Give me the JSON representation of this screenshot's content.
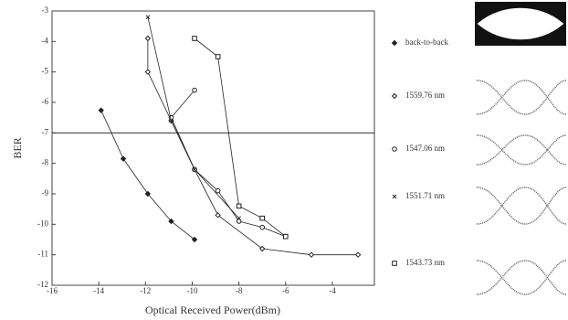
{
  "chart_data": {
    "type": "line",
    "x_label": "Optical Received Power(dBm)",
    "y_label": "BER",
    "xlim": [
      -16,
      -2.2
    ],
    "xticks": [
      -16,
      -14,
      -12,
      -10,
      -8,
      -6,
      -4
    ],
    "ylim": [
      -12,
      -3
    ],
    "yticks": [
      -3,
      -4,
      -5,
      -6,
      -7,
      -8,
      -9,
      -10,
      -11,
      -12
    ],
    "reference_line": -7,
    "series": [
      {
        "name": "back-to-back",
        "color": "#222222",
        "marker": "diamond-filled",
        "x": [
          -13.9,
          -12.95,
          -11.9,
          -10.9,
          -9.9
        ],
        "values": [
          -6.26,
          -7.85,
          -9.0,
          -9.9,
          -10.5
        ]
      },
      {
        "name": "1559.76 nm",
        "color": "#222222",
        "marker": "diamond",
        "x": [
          -11.9,
          -11.9,
          -10.9,
          -9.9,
          -8.9,
          -7,
          -4.9,
          -2.9
        ],
        "values": [
          -3.9,
          -5.0,
          -6.6,
          -8.2,
          -9.7,
          -10.8,
          -11,
          -11
        ]
      },
      {
        "name": "1547.06 nm",
        "color": "#222222",
        "marker": "circle",
        "x": [
          -9.9,
          -10.9,
          -9.9,
          -8.9,
          -8,
          -7,
          -6
        ],
        "values": [
          -5.6,
          -6.5,
          -8.2,
          -8.9,
          -9.9,
          -10.1,
          -10.4
        ]
      },
      {
        "name": "1551.71 nm",
        "color": "#222222",
        "marker": "cross",
        "x": [
          -11.9,
          -10.9,
          -9.9,
          -8
        ],
        "values": [
          -3.2,
          -6.6,
          -8.2,
          -9.8
        ]
      },
      {
        "name": "1543.73 nm",
        "color": "#222222",
        "marker": "square",
        "x": [
          -9.9,
          -8.9,
          -8,
          -7,
          -6
        ],
        "values": [
          -3.9,
          -4.5,
          -9.4,
          -9.8,
          -10.4
        ]
      }
    ]
  }
}
